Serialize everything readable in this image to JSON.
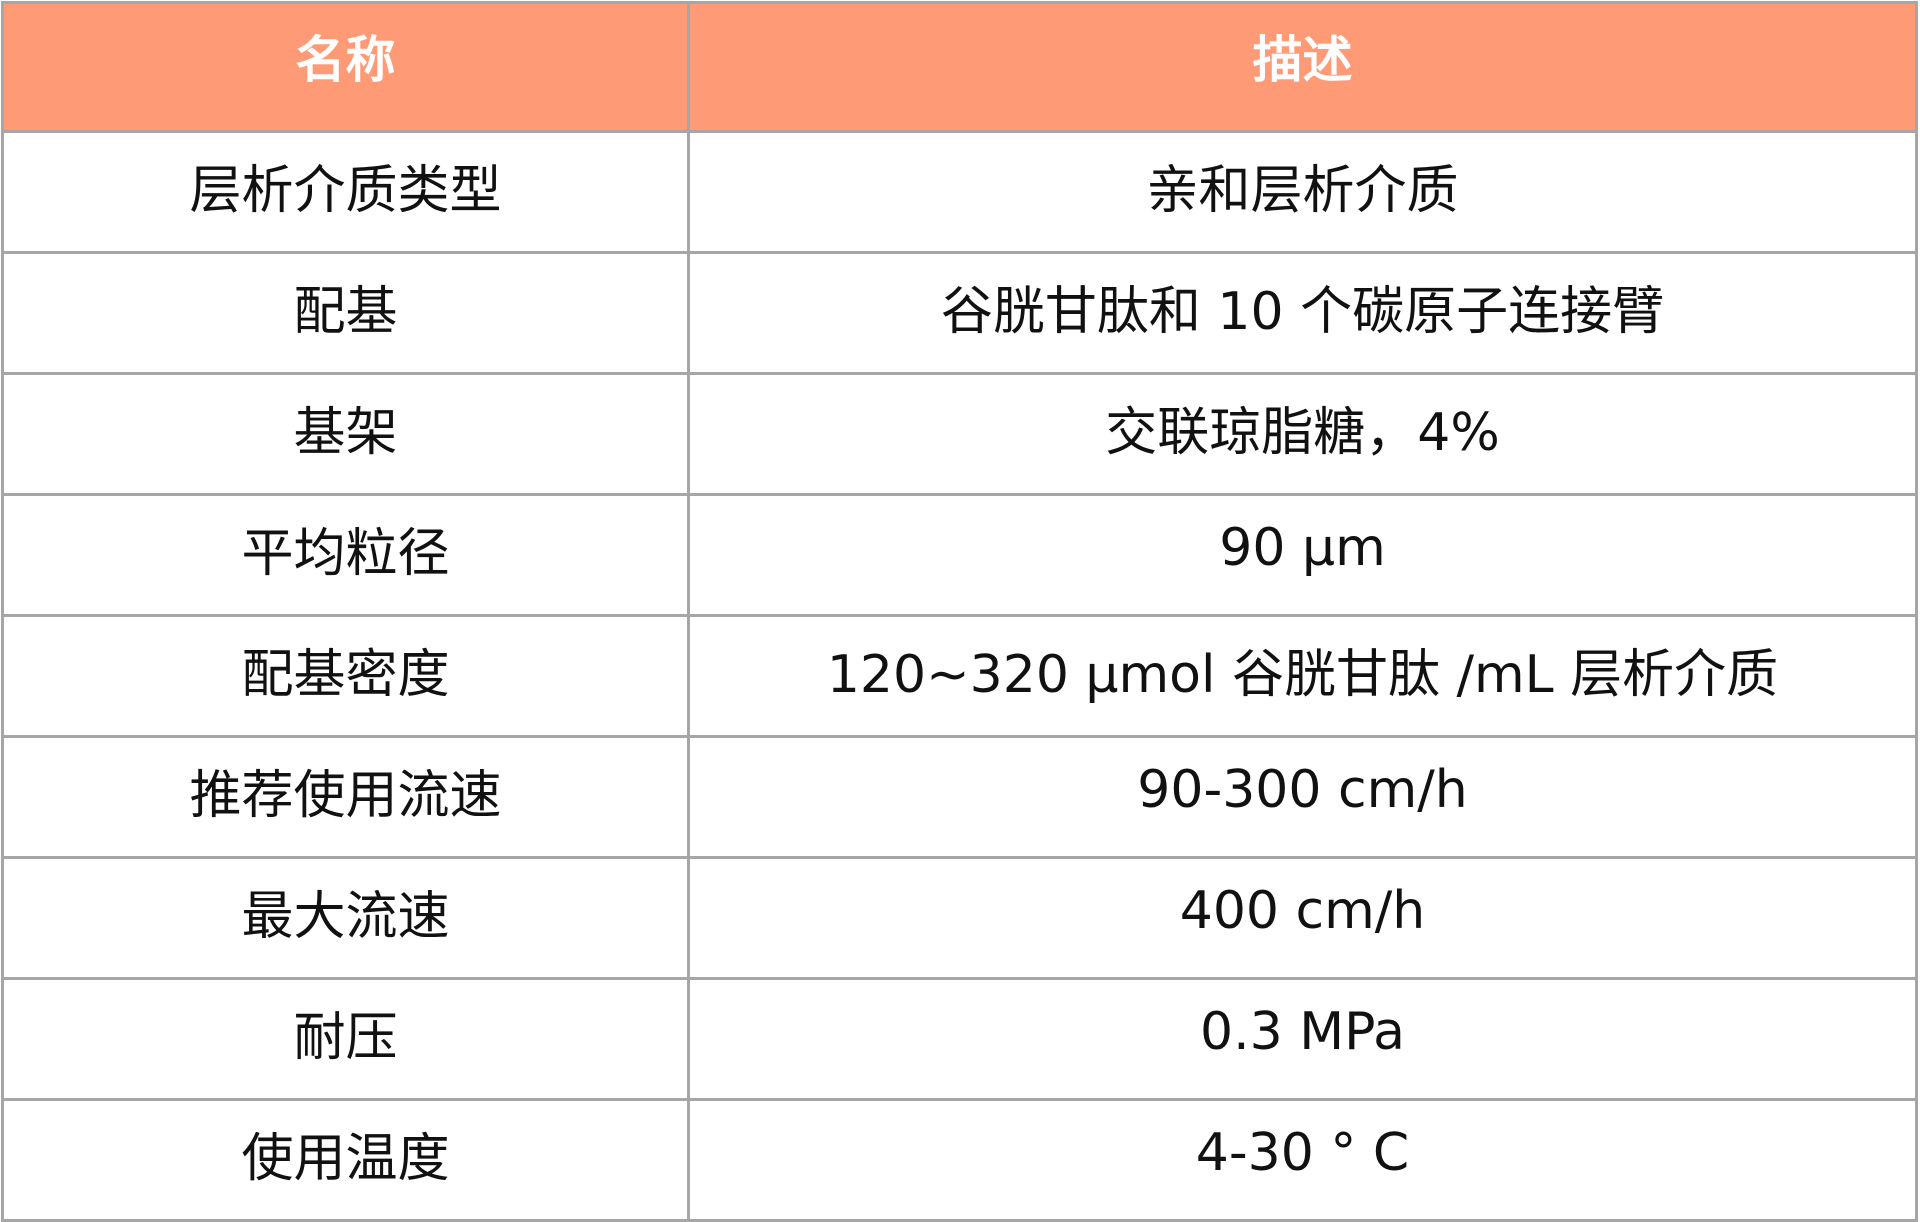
{
  "table": {
    "header_color": "#ff9a76",
    "headers": [
      "名称",
      "描述"
    ],
    "rows": [
      [
        "层析介质类型",
        "亲和层析介质"
      ],
      [
        "配基",
        "谷胱甘肽和 10 个碳原子连接臂"
      ],
      [
        "基架",
        "交联琼脂糖，4%"
      ],
      [
        "平均粒径",
        "90 μm"
      ],
      [
        "配基密度",
        "120~320 μmol 谷胱甘肽 /mL 层析介质"
      ],
      [
        "推荐使用流速",
        "90-300 cm/h"
      ],
      [
        "最大流速",
        "400 cm/h"
      ],
      [
        "耐压",
        "0.3 MPa"
      ],
      [
        "使用温度",
        "4-30 ° C"
      ]
    ]
  }
}
